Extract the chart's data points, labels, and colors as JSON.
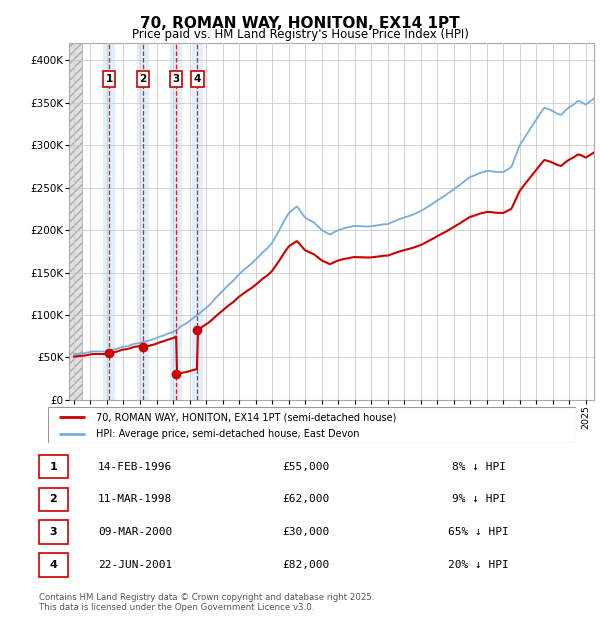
{
  "title": "70, ROMAN WAY, HONITON, EX14 1PT",
  "subtitle": "Price paid vs. HM Land Registry's House Price Index (HPI)",
  "legend_property": "70, ROMAN WAY, HONITON, EX14 1PT (semi-detached house)",
  "legend_hpi": "HPI: Average price, semi-detached house, East Devon",
  "footer": "Contains HM Land Registry data © Crown copyright and database right 2025.\nThis data is licensed under the Open Government Licence v3.0.",
  "transactions": [
    {
      "num": 1,
      "date": "14-FEB-1996",
      "price": 55000,
      "pct": "8% ↓ HPI",
      "year": 1996.12
    },
    {
      "num": 2,
      "date": "11-MAR-1998",
      "price": 62000,
      "pct": "9% ↓ HPI",
      "year": 1998.19
    },
    {
      "num": 3,
      "date": "09-MAR-2000",
      "price": 30000,
      "pct": "65% ↓ HPI",
      "year": 2000.19
    },
    {
      "num": 4,
      "date": "22-JUN-2001",
      "price": 82000,
      "pct": "20% ↓ HPI",
      "year": 2001.47
    }
  ],
  "ylim": [
    0,
    420000
  ],
  "xlim_start": 1993.7,
  "xlim_end": 2025.5,
  "hatch_end": 1994.5,
  "property_color": "#cc0000",
  "hpi_color": "#7aaddc",
  "marker_color": "#cc0000",
  "vline_color": "#cc0000",
  "box_color": "#cc0000",
  "grid_color": "#cccccc",
  "shade_color": "#d0e4f5",
  "background_color": "#ffffff",
  "hpi_knots_x": [
    1994,
    1995,
    1996,
    1997,
    1998,
    1999,
    2000,
    2001,
    2002,
    2003,
    2004,
    2005,
    2006,
    2007,
    2007.5,
    2008,
    2008.5,
    2009,
    2009.5,
    2010,
    2011,
    2012,
    2013,
    2014,
    2015,
    2016,
    2017,
    2018,
    2019,
    2020,
    2020.5,
    2021,
    2022,
    2022.5,
    2023,
    2023.5,
    2024,
    2024.5,
    2025,
    2025.5
  ],
  "hpi_knots_y": [
    54000,
    56000,
    58000,
    62000,
    67000,
    73000,
    80000,
    93000,
    108000,
    128000,
    148000,
    165000,
    185000,
    220000,
    228000,
    215000,
    210000,
    200000,
    195000,
    200000,
    205000,
    205000,
    207000,
    215000,
    222000,
    235000,
    248000,
    263000,
    270000,
    268000,
    275000,
    300000,
    330000,
    345000,
    340000,
    335000,
    345000,
    352000,
    348000,
    355000
  ]
}
